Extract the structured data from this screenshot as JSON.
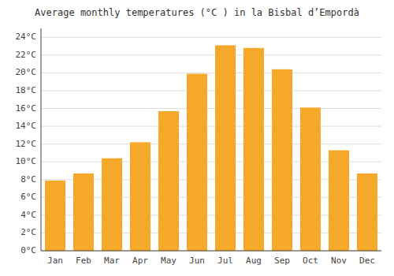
{
  "chart_data": {
    "type": "bar",
    "title": "Average monthly temperatures (°C ) in la Bisbal d’Empordà",
    "categories": [
      "Jan",
      "Feb",
      "Mar",
      "Apr",
      "May",
      "Jun",
      "Jul",
      "Aug",
      "Sep",
      "Oct",
      "Nov",
      "Dec"
    ],
    "values": [
      7.9,
      8.7,
      10.4,
      12.2,
      15.7,
      19.9,
      23.1,
      22.8,
      20.4,
      16.1,
      11.3,
      8.7
    ],
    "color": "#F5A82A",
    "ylim": [
      0,
      25
    ],
    "yticks": [
      {
        "value": 0,
        "label": "0°C"
      },
      {
        "value": 2,
        "label": "2°C"
      },
      {
        "value": 4,
        "label": "4°C"
      },
      {
        "value": 6,
        "label": "6°C"
      },
      {
        "value": 8,
        "label": "8°C"
      },
      {
        "value": 10,
        "label": "10°C"
      },
      {
        "value": 12,
        "label": "12°C"
      },
      {
        "value": 14,
        "label": "14°C"
      },
      {
        "value": 16,
        "label": "16°C"
      },
      {
        "value": 18,
        "label": "18°C"
      },
      {
        "value": 20,
        "label": "20°C"
      },
      {
        "value": 22,
        "label": "22°C"
      },
      {
        "value": 24,
        "label": "24°C"
      }
    ],
    "grid": true
  }
}
